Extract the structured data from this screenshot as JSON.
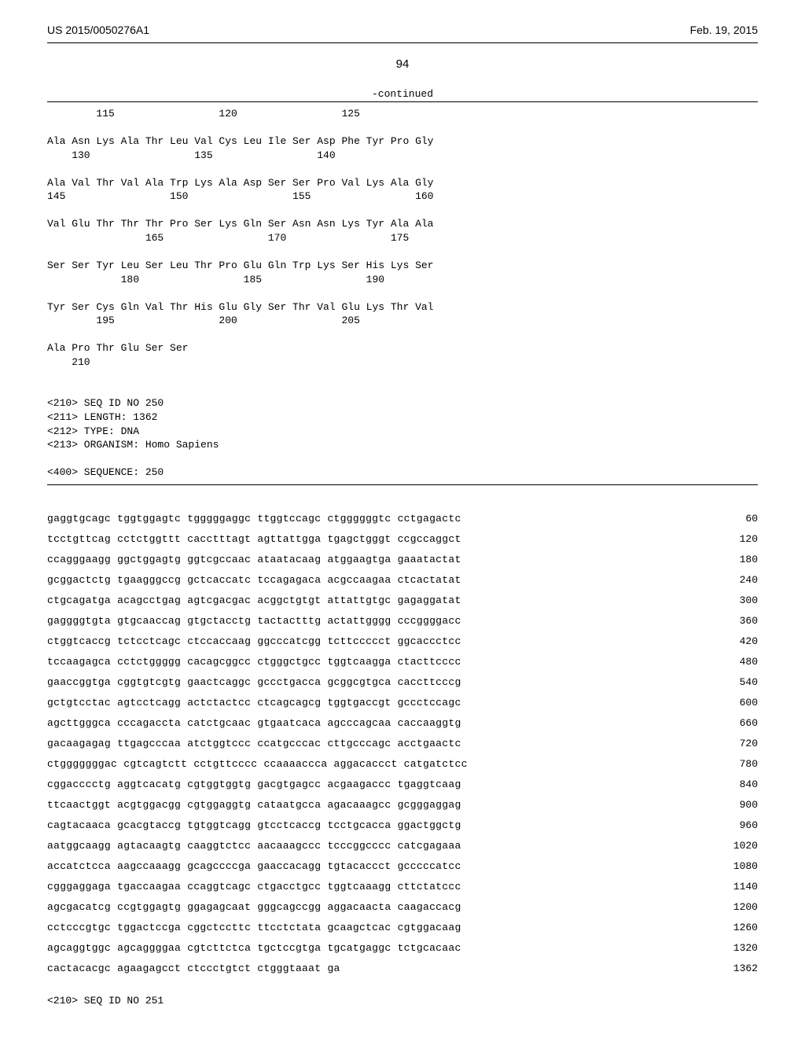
{
  "header": {
    "left": "US 2015/0050276A1",
    "right": "Feb. 19, 2015"
  },
  "page_number": "94",
  "continued_label": "-continued",
  "protein_block": "        115                 120                 125\n\nAla Asn Lys Ala Thr Leu Val Cys Leu Ile Ser Asp Phe Tyr Pro Gly\n    130                 135                 140\n\nAla Val Thr Val Ala Trp Lys Ala Asp Ser Ser Pro Val Lys Ala Gly\n145                 150                 155                 160\n\nVal Glu Thr Thr Thr Pro Ser Lys Gln Ser Asn Asn Lys Tyr Ala Ala\n                165                 170                 175\n\nSer Ser Tyr Leu Ser Leu Thr Pro Glu Gln Trp Lys Ser His Lys Ser\n            180                 185                 190\n\nTyr Ser Cys Gln Val Thr His Glu Gly Ser Thr Val Glu Lys Thr Val\n        195                 200                 205\n\nAla Pro Thr Glu Ser Ser\n    210\n\n\n<210> SEQ ID NO 250\n<211> LENGTH: 1362\n<212> TYPE: DNA\n<213> ORGANISM: Homo Sapiens\n\n<400> SEQUENCE: 250",
  "dna_lines": [
    {
      "seq": "gaggtgcagc tggtggagtc tgggggaggc ttggtccagc ctggggggtc cctgagactc",
      "num": "60"
    },
    {
      "seq": "tcctgttcag cctctggttt cacctttagt agttattgga tgagctgggt ccgccaggct",
      "num": "120"
    },
    {
      "seq": "ccagggaagg ggctggagtg ggtcgccaac ataatacaag atggaagtga gaaatactat",
      "num": "180"
    },
    {
      "seq": "gcggactctg tgaagggccg gctcaccatc tccagagaca acgccaagaa ctcactatat",
      "num": "240"
    },
    {
      "seq": "ctgcagatga acagcctgag agtcgacgac acggctgtgt attattgtgc gagaggatat",
      "num": "300"
    },
    {
      "seq": "gaggggtgta gtgcaaccag gtgctacctg tactactttg actattgggg cccggggacc",
      "num": "360"
    },
    {
      "seq": "ctggtcaccg tctcctcagc ctccaccaag ggcccatcgg tcttccccct ggcaccctcc",
      "num": "420"
    },
    {
      "seq": "tccaagagca cctctggggg cacagcggcc ctgggctgcc tggtcaagga ctacttcccc",
      "num": "480"
    },
    {
      "seq": "gaaccggtga cggtgtcgtg gaactcaggc gccctgacca gcggcgtgca caccttcccg",
      "num": "540"
    },
    {
      "seq": "gctgtcctac agtcctcagg actctactcc ctcagcagcg tggtgaccgt gccctccagc",
      "num": "600"
    },
    {
      "seq": "agcttgggca cccagaccta catctgcaac gtgaatcaca agcccagcaa caccaaggtg",
      "num": "660"
    },
    {
      "seq": "gacaagagag ttgagcccaa atctggtccc ccatgcccac cttgcccagc acctgaactc",
      "num": "720"
    },
    {
      "seq": "ctgggggggac cgtcagtctt cctgttcccc ccaaaaccca aggacaccct catgatctcc",
      "num": "780"
    },
    {
      "seq": "cggacccctg aggtcacatg cgtggtggtg gacgtgagcc acgaagaccc tgaggtcaag",
      "num": "840"
    },
    {
      "seq": "ttcaactggt acgtggacgg cgtggaggtg cataatgcca agacaaagcc gcgggaggag",
      "num": "900"
    },
    {
      "seq": "cagtacaaca gcacgtaccg tgtggtcagg gtcctcaccg tcctgcacca ggactggctg",
      "num": "960"
    },
    {
      "seq": "aatggcaagg agtacaagtg caaggtctcc aacaaagccc tcccggcccc catcgagaaa",
      "num": "1020"
    },
    {
      "seq": "accatctcca aagccaaagg gcagccccga gaaccacagg tgtacaccct gcccccatcc",
      "num": "1080"
    },
    {
      "seq": "cgggaggaga tgaccaagaa ccaggtcagc ctgacctgcc tggtcaaagg cttctatccc",
      "num": "1140"
    },
    {
      "seq": "agcgacatcg ccgtggagtg ggagagcaat gggcagccgg aggacaacta caagaccacg",
      "num": "1200"
    },
    {
      "seq": "cctcccgtgc tggactccga cggctccttc ttcctctata gcaagctcac cgtggacaag",
      "num": "1260"
    },
    {
      "seq": "agcaggtggc agcaggggaa cgtcttctca tgctccgtga tgcatgaggc tctgcacaac",
      "num": "1320"
    },
    {
      "seq": "cactacacgc agaagagcct ctccctgtct ctgggtaaat ga",
      "num": "1362"
    }
  ],
  "footer_seq": "<210> SEQ ID NO 251"
}
